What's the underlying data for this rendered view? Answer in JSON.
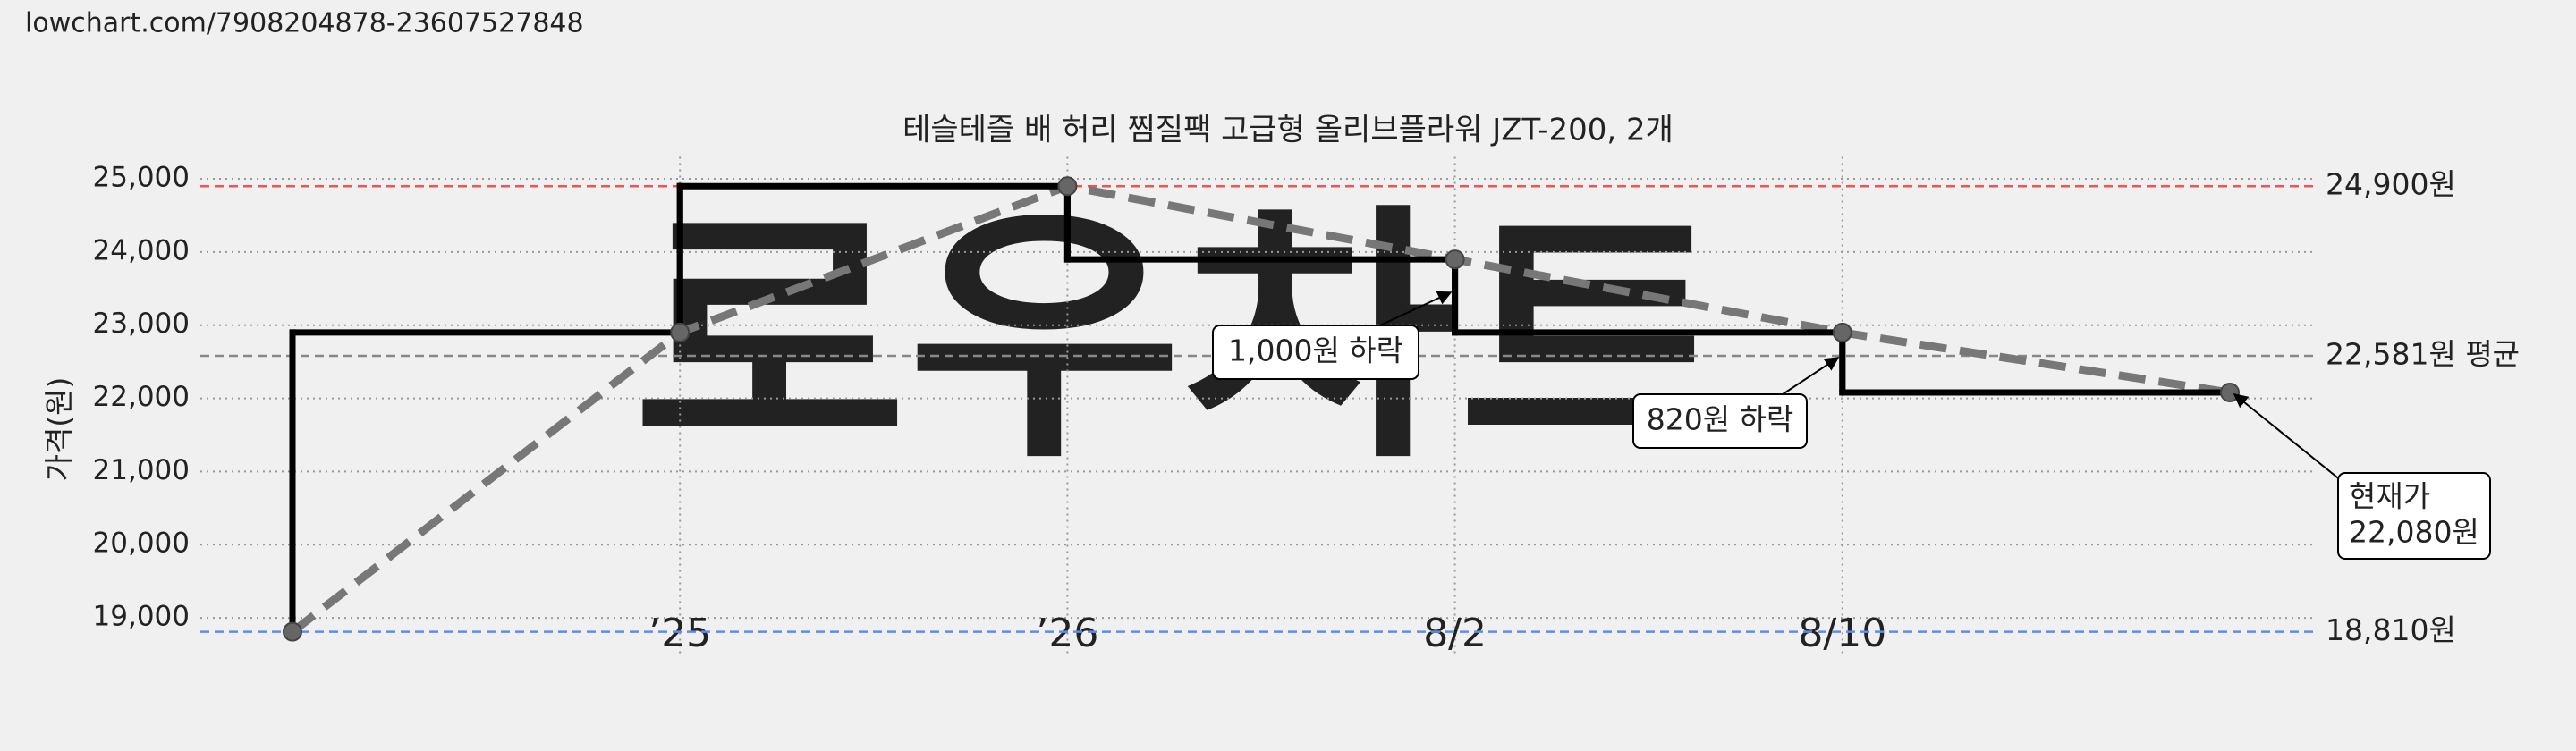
{
  "url": "lowchart.com/7908204878-23607527848",
  "chart_data": {
    "type": "line",
    "title": "테슬테즐 배 허리 찜질팩 고급형 올리브플라워 JZT-200, 2개",
    "watermark": "로우차트",
    "y_label": "가격(원)",
    "categories": [
      null,
      "’25",
      "’26",
      "8/2",
      "8/10",
      null
    ],
    "category_colors": [
      null,
      "#111111",
      "#111111",
      "#777777",
      "#777777",
      null
    ],
    "values": [
      18810,
      22900,
      24900,
      23900,
      22900,
      22080
    ],
    "color": "#000000",
    "trend_color": "#777777",
    "step": true,
    "ylim": [
      18500,
      25300
    ],
    "yticks": [
      {
        "value": 19000,
        "label": "19,000"
      },
      {
        "value": 20000,
        "label": "20,000"
      },
      {
        "value": 21000,
        "label": "21,000"
      },
      {
        "value": 22000,
        "label": "22,000"
      },
      {
        "value": 23000,
        "label": "23,000"
      },
      {
        "value": 24000,
        "label": "24,000"
      },
      {
        "value": 25000,
        "label": "25,000"
      }
    ],
    "grid": true,
    "reference_lines": [
      {
        "value": 24900,
        "label": "24,900원",
        "color": "#f05555"
      },
      {
        "value": 22581,
        "label": "22,581원 평균",
        "color": "#888888"
      },
      {
        "value": 18810,
        "label": "18,810원",
        "color": "#5b8def"
      }
    ],
    "annotations": [
      {
        "lines": [
          "1,000원 하락"
        ]
      },
      {
        "lines": [
          "820원 하락"
        ]
      },
      {
        "lines": [
          "현재가",
          "22,080원"
        ]
      }
    ]
  }
}
